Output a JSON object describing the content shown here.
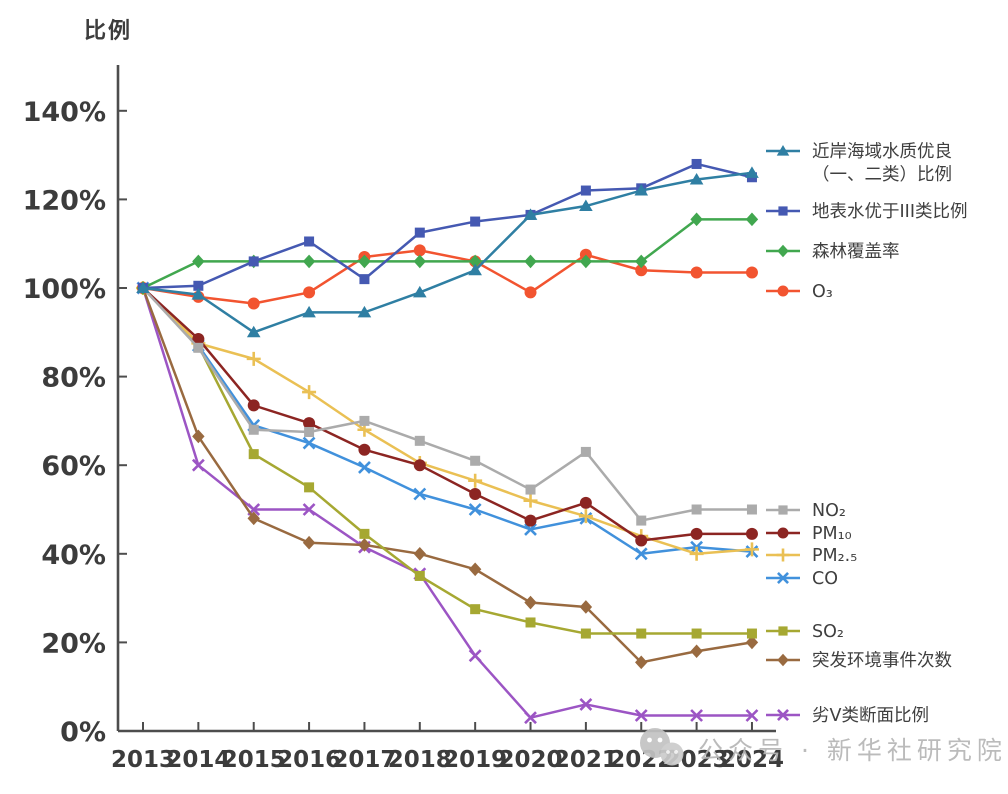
{
  "chart_data": {
    "type": "line",
    "title": "比例",
    "categories": [
      "2013",
      "2014",
      "2015",
      "2016",
      "2017",
      "2018",
      "2019",
      "2020",
      "2021",
      "2022",
      "2023",
      "2024"
    ],
    "y_ticks": [
      "0%",
      "20%",
      "40%",
      "60%",
      "80%",
      "100%",
      "120%",
      "140%"
    ],
    "ylim": [
      0,
      150
    ],
    "grid": false,
    "legend_position": "right",
    "series": [
      {
        "key": "coastal-water",
        "name": "近岸海域水质优良（一、二类）比例",
        "name_lines": [
          "近岸海域水质优良",
          "（一、二类）比例"
        ],
        "color": "#2f7fa3",
        "marker": "triangle",
        "values": [
          100,
          98.5,
          90,
          94.5,
          94.5,
          99,
          104,
          116.5,
          118.5,
          122,
          124.5,
          126
        ]
      },
      {
        "key": "surface-water",
        "name": "地表水优于III类比例",
        "color": "#4559b2",
        "marker": "square",
        "values": [
          100,
          100.5,
          106,
          110.5,
          102,
          112.5,
          115,
          116.5,
          122,
          122.5,
          128,
          125
        ]
      },
      {
        "key": "forest-coverage",
        "name": "森林覆盖率",
        "color": "#41a74f",
        "marker": "diamond",
        "values": [
          100,
          106,
          106,
          106,
          106,
          106,
          106,
          106,
          106,
          106,
          115.5,
          115.5
        ]
      },
      {
        "key": "o3",
        "name": "O₃",
        "color": "#f25430",
        "marker": "circle",
        "values": [
          100,
          98,
          96.5,
          99,
          107,
          108.5,
          106,
          99,
          107.5,
          104,
          103.5,
          103.5
        ]
      },
      {
        "key": "no2",
        "name": "NO₂",
        "color": "#ababab",
        "marker": "square",
        "values": [
          100,
          86.5,
          68,
          67.5,
          70,
          65.5,
          61,
          54.5,
          63,
          47.5,
          50,
          50
        ]
      },
      {
        "key": "pm10",
        "name": "PM₁₀",
        "color": "#8c2522",
        "marker": "circle",
        "values": [
          100,
          88.5,
          73.5,
          69.5,
          63.5,
          60,
          53.5,
          47.5,
          51.5,
          43,
          44.5,
          44.5
        ]
      },
      {
        "key": "pm2_5",
        "name": "PM₂.₅",
        "color": "#eac054",
        "marker": "plus",
        "values": [
          100,
          87.5,
          84,
          76.5,
          68,
          60.5,
          56.5,
          52,
          48.5,
          44,
          40,
          41
        ]
      },
      {
        "key": "co",
        "name": "CO",
        "color": "#4191dc",
        "marker": "x",
        "values": [
          100,
          87,
          69,
          65,
          59.5,
          53.5,
          50,
          45.5,
          48,
          40,
          41.5,
          40.5
        ]
      },
      {
        "key": "so2",
        "name": "SO₂",
        "color": "#a6a832",
        "marker": "square",
        "values": [
          100,
          87,
          62.5,
          55,
          44.5,
          35,
          27.5,
          24.5,
          22,
          22,
          22,
          22
        ]
      },
      {
        "key": "env-incidents",
        "name": "突发环境事件次数",
        "color": "#996a40",
        "marker": "diamond",
        "values": [
          100,
          66.5,
          48,
          42.5,
          42,
          40,
          36.5,
          29,
          28,
          15.5,
          18,
          20
        ]
      },
      {
        "key": "inferior-v",
        "name": "劣V类断面比例",
        "color": "#9c55c4",
        "marker": "x",
        "values": [
          100,
          60,
          50,
          50,
          41.5,
          35.5,
          17,
          3,
          6,
          3.5,
          3.5,
          3.5
        ]
      }
    ]
  },
  "watermark": {
    "text": "公众号 · 新华社研究院",
    "icon": "wechat-icon"
  }
}
